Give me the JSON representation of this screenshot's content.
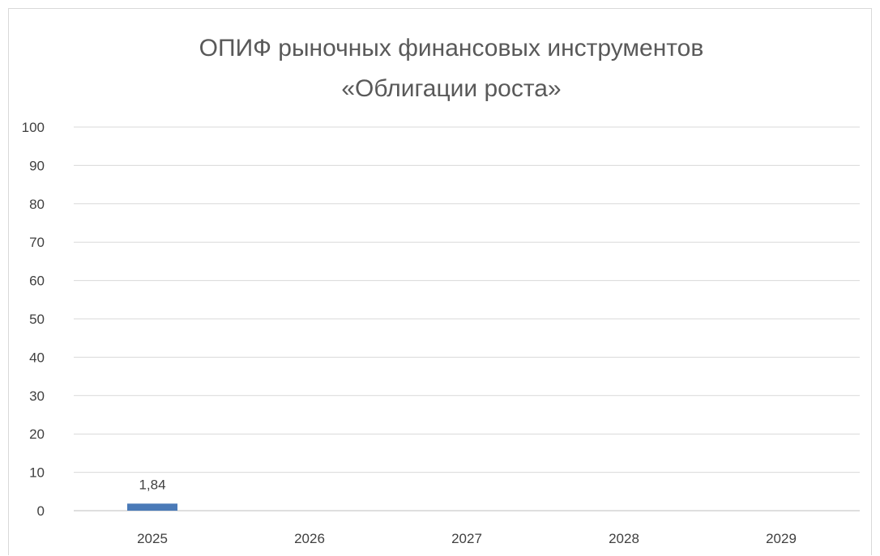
{
  "chart_data": {
    "type": "bar",
    "title": "ОПИФ рыночных финансовых инструментов «Облигации роста»",
    "title_lines": [
      "ОПИФ рыночных финансовых инструментов",
      "«Облигации роста»"
    ],
    "categories": [
      "2025",
      "2026",
      "2027",
      "2028",
      "2029"
    ],
    "values": [
      1.84,
      null,
      null,
      null,
      null
    ],
    "data_labels": [
      "1,84",
      "",
      "",
      "",
      ""
    ],
    "y_ticks": [
      "0",
      "10",
      "20",
      "30",
      "40",
      "50",
      "60",
      "70",
      "80",
      "90",
      "100"
    ],
    "ylim": [
      0,
      100
    ],
    "y_tick_step": 10,
    "grid": true,
    "legend": "none",
    "colors": {
      "bar": "#4a7ab8",
      "gridline": "#d9d9d9",
      "title": "#595959",
      "text": "#404040"
    }
  }
}
